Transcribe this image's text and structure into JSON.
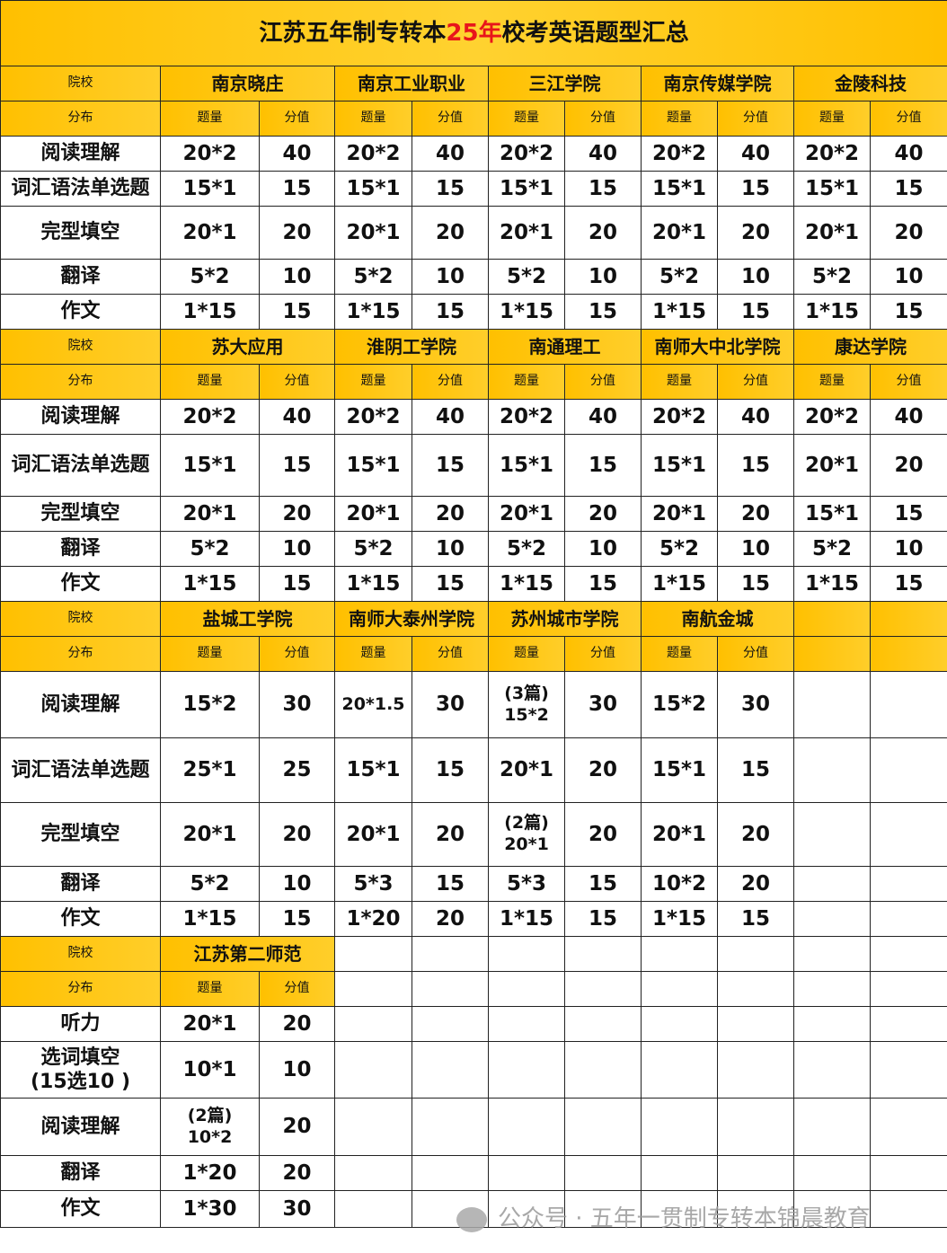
{
  "title_prefix": "江苏五年制专转本",
  "title_highlight": "25年",
  "title_suffix": "校考英语题型汇总",
  "colors": {
    "header": "#FFC000",
    "highlight": "#e8151b"
  },
  "header_labels": {
    "school": "院校",
    "distribution": "分布",
    "quantity": "题量",
    "score": "分值"
  },
  "blocks": [
    {
      "schools": [
        "南京晓庄",
        "南京工业职业",
        "三江学院",
        "南京传媒学院",
        "金陵科技"
      ],
      "rows": [
        {
          "label": "阅读理解",
          "cells": [
            "20*2",
            "40",
            "20*2",
            "40",
            "20*2",
            "40",
            "20*2",
            "40",
            "20*2",
            "40"
          ]
        },
        {
          "label": "词汇语法单选题",
          "cells": [
            "15*1",
            "15",
            "15*1",
            "15",
            "15*1",
            "15",
            "15*1",
            "15",
            "15*1",
            "15"
          ]
        },
        {
          "label": "完型填空",
          "cells": [
            "20*1",
            "20",
            "20*1",
            "20",
            "20*1",
            "20",
            "20*1",
            "20",
            "20*1",
            "20"
          ]
        },
        {
          "label": "翻译",
          "cells": [
            "5*2",
            "10",
            "5*2",
            "10",
            "5*2",
            "10",
            "5*2",
            "10",
            "5*2",
            "10"
          ]
        },
        {
          "label": "作文",
          "cells": [
            "1*15",
            "15",
            "1*15",
            "15",
            "1*15",
            "15",
            "1*15",
            "15",
            "1*15",
            "15"
          ]
        }
      ]
    },
    {
      "schools": [
        "苏大应用",
        "淮阴工学院",
        "南通理工",
        "南师大中北学院",
        "康达学院"
      ],
      "rows": [
        {
          "label": "阅读理解",
          "cells": [
            "20*2",
            "40",
            "20*2",
            "40",
            "20*2",
            "40",
            "20*2",
            "40",
            "20*2",
            "40"
          ]
        },
        {
          "label": "词汇语法单选题",
          "cells": [
            "15*1",
            "15",
            "15*1",
            "15",
            "15*1",
            "15",
            "15*1",
            "15",
            "20*1",
            "20"
          ]
        },
        {
          "label": "完型填空",
          "cells": [
            "20*1",
            "20",
            "20*1",
            "20",
            "20*1",
            "20",
            "20*1",
            "20",
            "15*1",
            "15"
          ]
        },
        {
          "label": "翻译",
          "cells": [
            "5*2",
            "10",
            "5*2",
            "10",
            "5*2",
            "10",
            "5*2",
            "10",
            "5*2",
            "10"
          ]
        },
        {
          "label": "作文",
          "cells": [
            "1*15",
            "15",
            "1*15",
            "15",
            "1*15",
            "15",
            "1*15",
            "15",
            "1*15",
            "15"
          ]
        }
      ]
    },
    {
      "schools": [
        "盐城工学院",
        "南师大泰州学院",
        "苏州城市学院",
        "南航金城"
      ],
      "rows": [
        {
          "label": "阅读理解",
          "cells": [
            "15*2",
            "30",
            "20*1.5",
            "30",
            "(3篇)\n15*2",
            "30",
            "15*2",
            "30"
          ]
        },
        {
          "label": "词汇语法单选题",
          "cells": [
            "25*1",
            "25",
            "15*1",
            "15",
            "20*1",
            "20",
            "15*1",
            "15"
          ]
        },
        {
          "label": "完型填空",
          "cells": [
            "20*1",
            "20",
            "20*1",
            "20",
            "(2篇)\n20*1",
            "20",
            "20*1",
            "20"
          ]
        },
        {
          "label": "翻译",
          "cells": [
            "5*2",
            "10",
            "5*3",
            "15",
            "5*3",
            "15",
            "10*2",
            "20"
          ]
        },
        {
          "label": "作文",
          "cells": [
            "1*15",
            "15",
            "1*20",
            "20",
            "1*15",
            "15",
            "1*15",
            "15"
          ]
        }
      ]
    },
    {
      "schools": [
        "江苏第二师范"
      ],
      "rows": [
        {
          "label": "听力",
          "cells": [
            "20*1",
            "20"
          ]
        },
        {
          "label": "选词填空\n(15选10 )",
          "cells": [
            "10*1",
            "10"
          ]
        },
        {
          "label": "阅读理解",
          "cells": [
            "(2篇)\n10*2",
            "20"
          ]
        },
        {
          "label": "翻译",
          "cells": [
            "1*20",
            "20"
          ]
        },
        {
          "label": "作文",
          "cells": [
            "1*30",
            "30"
          ]
        }
      ]
    }
  ],
  "watermark": "公众号 · 五年一贯制专转本锦晨教育"
}
